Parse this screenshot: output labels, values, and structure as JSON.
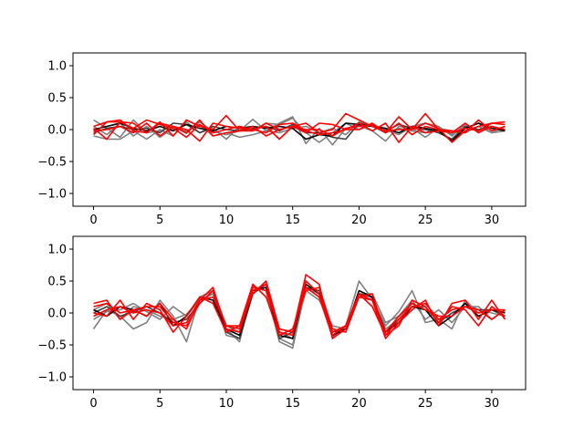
{
  "chart_data": [
    {
      "type": "line",
      "title": "",
      "xlabel": "",
      "ylabel": "",
      "xlim": [
        -1.55,
        32.55
      ],
      "ylim": [
        -1.2,
        1.2
      ],
      "xticks": [
        0,
        5,
        10,
        15,
        20,
        25,
        30
      ],
      "yticks": [
        1.0,
        0.5,
        0.0,
        -0.5,
        -1.0
      ],
      "xtick_labels": [
        "0",
        "5",
        "10",
        "15",
        "20",
        "25",
        "30"
      ],
      "ytick_labels": [
        "1.0",
        "0.5",
        "0.0",
        "−0.5",
        "−1.0"
      ],
      "grid": false,
      "x": [
        0,
        1,
        2,
        3,
        4,
        5,
        6,
        7,
        8,
        9,
        10,
        11,
        12,
        13,
        14,
        15,
        16,
        17,
        18,
        19,
        20,
        21,
        22,
        23,
        24,
        25,
        26,
        27,
        28,
        29,
        30,
        31
      ],
      "series": [
        {
          "color": "#808080",
          "values": [
            0.15,
            0.02,
            -0.12,
            0.15,
            -0.05,
            -0.02,
            0.05,
            -0.06,
            0.12,
            -0.03,
            -0.08,
            -0.02,
            0.16,
            -0.02,
            0.1,
            0.2,
            -0.22,
            0.02,
            -0.24,
            0.02,
            0.06,
            -0.02,
            -0.18,
            0.05,
            0.02,
            -0.12,
            0.03,
            -0.08,
            0.02,
            0.1,
            -0.05,
            0.05
          ]
        },
        {
          "color": "#808080",
          "values": [
            -0.1,
            -0.15,
            -0.15,
            -0.02,
            -0.15,
            0.0,
            -0.1,
            0.12,
            -0.05,
            0.02,
            -0.15,
            0.05,
            -0.02,
            0.1,
            0.08,
            0.18,
            -0.05,
            -0.2,
            -0.05,
            0.1,
            0.0,
            0.08,
            0.0,
            -0.08,
            0.05,
            0.1,
            0.05,
            -0.1,
            0.08,
            -0.02,
            0.05,
            0.0
          ]
        },
        {
          "color": "#808080",
          "values": [
            0.05,
            -0.08,
            0.1,
            -0.1,
            0.05,
            -0.12,
            0.02,
            -0.02,
            0.08,
            -0.1,
            -0.05,
            -0.12,
            -0.08,
            -0.02,
            -0.05,
            0.02,
            0.05,
            -0.05,
            0.02,
            -0.08,
            0.12,
            0.05,
            -0.05,
            0.02,
            -0.02,
            -0.05,
            0.02,
            -0.02,
            -0.05,
            0.05,
            -0.05,
            -0.02
          ]
        },
        {
          "color": "#404040",
          "values": [
            -0.05,
            0.02,
            0.05,
            0.0,
            0.02,
            -0.05,
            0.1,
            0.08,
            -0.05,
            0.05,
            0.0,
            -0.02,
            0.02,
            0.05,
            -0.02,
            0.08,
            -0.05,
            -0.05,
            -0.12,
            -0.15,
            0.1,
            0.05,
            -0.02,
            0.08,
            0.02,
            0.0,
            -0.05,
            -0.15,
            0.05,
            0.0,
            0.05,
            -0.02
          ]
        },
        {
          "color": "#000000",
          "values": [
            0.0,
            0.05,
            0.1,
            0.02,
            -0.02,
            0.05,
            -0.02,
            0.08,
            0.02,
            -0.02,
            0.05,
            0.02,
            0.05,
            0.02,
            0.05,
            0.02,
            -0.15,
            -0.08,
            -0.1,
            0.1,
            0.08,
            0.05,
            0.02,
            -0.05,
            0.05,
            0.02,
            -0.02,
            -0.18,
            0.02,
            0.1,
            0.02,
            -0.02
          ]
        },
        {
          "color": "#ff0000",
          "values": [
            -0.08,
            0.12,
            0.12,
            0.02,
            0.15,
            0.08,
            0.02,
            -0.12,
            0.08,
            -0.05,
            0.0,
            0.05,
            0.0,
            0.05,
            -0.15,
            0.05,
            0.1,
            -0.05,
            0.0,
            0.25,
            0.15,
            0.05,
            -0.02,
            0.0,
            0.0,
            0.1,
            0.02,
            -0.2,
            -0.02,
            0.05,
            0.1,
            0.08
          ]
        },
        {
          "color": "#ff0000",
          "values": [
            0.05,
            0.12,
            0.15,
            -0.02,
            -0.05,
            0.12,
            -0.1,
            0.15,
            0.05,
            0.0,
            0.22,
            -0.02,
            -0.02,
            0.1,
            0.0,
            0.05,
            -0.05,
            0.1,
            0.08,
            0.0,
            0.0,
            0.1,
            -0.05,
            0.2,
            0.0,
            0.25,
            0.0,
            -0.02,
            -0.05,
            0.15,
            -0.02,
            0.05
          ]
        },
        {
          "color": "#ff0000",
          "values": [
            0.02,
            -0.15,
            0.12,
            0.1,
            -0.05,
            0.1,
            0.05,
            -0.05,
            0.15,
            -0.1,
            -0.05,
            -0.02,
            0.05,
            -0.1,
            0.0,
            0.05,
            0.0,
            0.0,
            -0.1,
            0.02,
            0.05,
            0.08,
            -0.05,
            0.1,
            -0.08,
            0.05,
            0.0,
            -0.05,
            0.02,
            -0.02,
            0.1,
            0.12
          ]
        },
        {
          "color": "#ff0000",
          "values": [
            -0.02,
            0.0,
            0.05,
            -0.05,
            0.1,
            -0.1,
            0.05,
            0.0,
            -0.18,
            0.1,
            0.05,
            0.02,
            0.0,
            -0.05,
            0.08,
            0.1,
            -0.02,
            -0.08,
            -0.05,
            0.0,
            0.1,
            -0.02,
            0.1,
            -0.2,
            0.05,
            -0.05,
            -0.02,
            -0.05,
            0.1,
            -0.05,
            0.05,
            0.0
          ]
        }
      ]
    },
    {
      "type": "line",
      "title": "",
      "xlabel": "",
      "ylabel": "",
      "xlim": [
        -1.55,
        32.55
      ],
      "ylim": [
        -1.2,
        1.2
      ],
      "xticks": [
        0,
        5,
        10,
        15,
        20,
        25,
        30
      ],
      "yticks": [
        1.0,
        0.5,
        0.0,
        -0.5,
        -1.0
      ],
      "xtick_labels": [
        "0",
        "5",
        "10",
        "15",
        "20",
        "25",
        "30"
      ],
      "ytick_labels": [
        "1.0",
        "0.5",
        "0.0",
        "−0.5",
        "−1.0"
      ],
      "grid": false,
      "x": [
        0,
        1,
        2,
        3,
        4,
        5,
        6,
        7,
        8,
        9,
        10,
        11,
        12,
        13,
        14,
        15,
        16,
        17,
        18,
        19,
        20,
        21,
        22,
        23,
        24,
        25,
        26,
        27,
        28,
        29,
        30,
        31
      ],
      "series": [
        {
          "color": "#808080",
          "values": [
            -0.25,
            0.05,
            -0.05,
            -0.25,
            -0.15,
            0.2,
            -0.05,
            -0.45,
            0.25,
            0.35,
            -0.25,
            -0.45,
            0.42,
            0.35,
            -0.45,
            -0.55,
            0.4,
            0.25,
            -0.38,
            -0.2,
            0.5,
            0.22,
            -0.2,
            0.02,
            0.35,
            -0.15,
            -0.1,
            -0.25,
            0.2,
            0.0,
            0.05,
            0.02
          ]
        },
        {
          "color": "#808080",
          "values": [
            -0.1,
            0.02,
            0.05,
            0.15,
            0.02,
            -0.1,
            0.1,
            -0.05,
            0.2,
            0.3,
            -0.35,
            -0.4,
            0.35,
            0.4,
            -0.3,
            -0.4,
            0.35,
            0.2,
            -0.2,
            -0.25,
            0.3,
            0.3,
            -0.15,
            -0.05,
            0.2,
            -0.1,
            0.05,
            -0.15,
            0.1,
            0.1,
            -0.1,
            0.05
          ]
        },
        {
          "color": "#808080",
          "values": [
            0.05,
            0.15,
            -0.1,
            0.1,
            0.05,
            -0.05,
            -0.1,
            -0.02,
            0.2,
            0.3,
            -0.2,
            -0.3,
            0.4,
            0.35,
            -0.4,
            -0.5,
            0.4,
            0.3,
            -0.35,
            -0.2,
            0.25,
            0.2,
            -0.25,
            -0.1,
            0.15,
            0.05,
            -0.1,
            -0.05,
            0.15,
            0.05,
            0.0,
            -0.05
          ]
        },
        {
          "color": "#404040",
          "values": [
            0.0,
            0.1,
            -0.05,
            0.02,
            0.1,
            0.0,
            -0.15,
            -0.1,
            0.15,
            0.35,
            -0.3,
            -0.4,
            0.3,
            0.45,
            -0.4,
            -0.3,
            0.4,
            0.35,
            -0.3,
            -0.25,
            0.3,
            0.25,
            -0.3,
            -0.1,
            0.1,
            0.1,
            -0.15,
            0.0,
            0.1,
            0.05,
            0.05,
            -0.05
          ]
        },
        {
          "color": "#000000",
          "values": [
            0.05,
            -0.05,
            0.1,
            0.05,
            -0.05,
            0.15,
            -0.2,
            -0.05,
            0.25,
            0.2,
            -0.25,
            -0.35,
            0.35,
            0.4,
            -0.35,
            -0.4,
            0.45,
            0.3,
            -0.35,
            -0.25,
            0.35,
            0.25,
            -0.3,
            -0.15,
            0.1,
            0.05,
            -0.2,
            -0.05,
            0.15,
            -0.05,
            0.05,
            0.0
          ]
        },
        {
          "color": "#ff0000",
          "values": [
            0.15,
            0.2,
            -0.1,
            0.05,
            0.1,
            0.1,
            -0.15,
            -0.2,
            0.15,
            0.35,
            -0.2,
            -0.2,
            0.3,
            0.5,
            -0.25,
            -0.3,
            0.6,
            0.45,
            -0.4,
            -0.25,
            0.3,
            0.2,
            -0.4,
            -0.15,
            0.05,
            0.2,
            -0.2,
            0.15,
            0.2,
            -0.1,
            0.2,
            -0.1
          ]
        },
        {
          "color": "#ff0000",
          "values": [
            0.0,
            -0.05,
            0.2,
            -0.1,
            0.15,
            0.05,
            -0.3,
            -0.05,
            0.25,
            0.15,
            -0.3,
            -0.2,
            0.45,
            0.25,
            -0.35,
            -0.25,
            0.35,
            0.4,
            -0.25,
            -0.3,
            0.25,
            0.3,
            -0.35,
            -0.2,
            0.2,
            0.1,
            -0.15,
            0.1,
            0.05,
            -0.2,
            0.1,
            -0.05
          ]
        },
        {
          "color": "#ff0000",
          "values": [
            0.1,
            0.15,
            0.0,
            0.05,
            -0.05,
            0.15,
            -0.1,
            -0.25,
            0.2,
            0.4,
            -0.25,
            -0.3,
            0.35,
            0.45,
            -0.3,
            -0.35,
            0.5,
            0.3,
            -0.3,
            -0.2,
            0.3,
            0.1,
            -0.35,
            -0.1,
            0.1,
            0.15,
            -0.1,
            0.05,
            0.1,
            0.05,
            -0.1,
            0.05
          ]
        },
        {
          "color": "#ff0000",
          "values": [
            -0.05,
            0.05,
            0.1,
            0.0,
            0.05,
            0.0,
            -0.2,
            -0.15,
            0.2,
            0.25,
            -0.2,
            -0.25,
            0.4,
            0.35,
            -0.25,
            -0.3,
            0.4,
            0.25,
            -0.35,
            -0.2,
            0.25,
            0.2,
            -0.3,
            -0.05,
            0.15,
            0.05,
            -0.05,
            -0.05,
            0.1,
            0.0,
            0.05,
            0.05
          ]
        }
      ]
    }
  ]
}
